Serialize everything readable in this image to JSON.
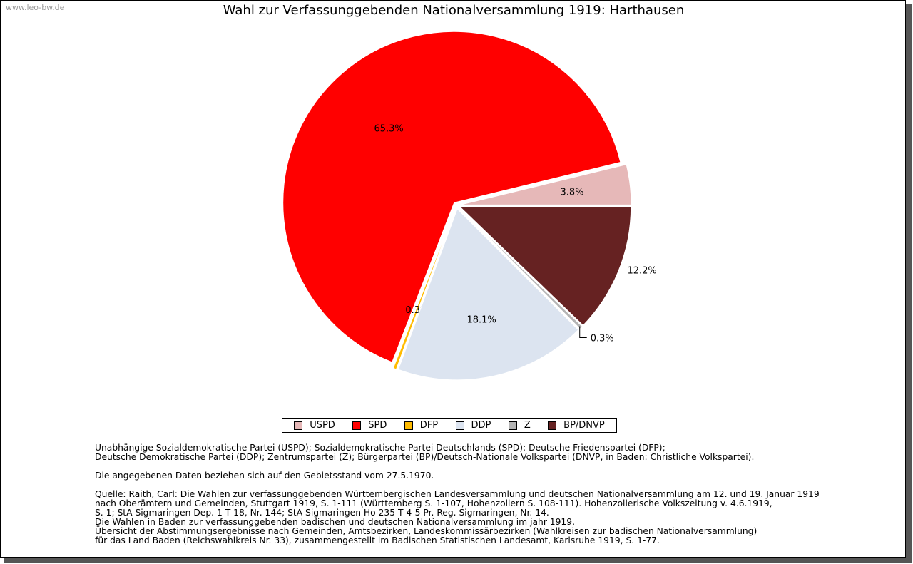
{
  "watermark": "www.leo-bw.de",
  "chart_data": {
    "type": "pie",
    "title": "Wahl zur Verfassunggebenden Nationalversammlung 1919: Harthausen",
    "slices": [
      {
        "name": "USPD",
        "value": 3.8,
        "label": "3.8%",
        "color": "#e6b8b8"
      },
      {
        "name": "SPD",
        "value": 65.3,
        "label": "65.3%",
        "color": "#ff0000"
      },
      {
        "name": "DFP",
        "value": 0.3,
        "label": "0.3%",
        "color": "#ffbb00"
      },
      {
        "name": "DDP",
        "value": 18.1,
        "label": "18.1%",
        "color": "#dce4f0"
      },
      {
        "name": "Z",
        "value": 0.3,
        "label": "0.3%",
        "color": "#b4b4b4"
      },
      {
        "name": "BP/DNVP",
        "value": 12.2,
        "label": "12.2%",
        "color": "#662222"
      }
    ],
    "legend_position": "bottom"
  },
  "footnotes": {
    "parties": [
      "Unabhängige Sozialdemokratische Partei (USPD); Sozialdemokratische Partei Deutschlands (SPD); Deutsche Friedenspartei (DFP);",
      "Deutsche Demokratische Partei (DDP); Zentrumspartei (Z); Bürgerpartei (BP)/Deutsch-Nationale Volkspartei (DNVP, in Baden: Christliche Volkspartei)."
    ],
    "territory": "Die angegebenen Daten beziehen sich auf den Gebietsstand vom 27.5.1970.",
    "source": [
      "Quelle: Raith, Carl: Die Wahlen zur verfassunggebenden Württembergischen Landesversammlung und deutschen Nationalversammlung am 12. und 19. Januar 1919",
      "nach Oberämtern und Gemeinden, Stuttgart 1919, S. 1-111 (Württemberg S. 1-107, Hohenzollern S. 108-111). Hohenzollerische Volkszeitung v. 4.6.1919,",
      "S. 1; StA Sigmaringen Dep. 1 T 18, Nr. 144; StA Sigmaringen Ho 235 T 4-5 Pr. Reg. Sigmaringen, Nr. 14.",
      "Die Wahlen in Baden zur verfassunggebenden badischen und deutschen Nationalversammlung im jahr 1919.",
      "Übersicht der Abstimmungsergebnisse nach Gemeinden, Amtsbezirken, Landeskommissärbezirken (Wahlkreisen zur badischen Nationalversammlung)",
      "für das Land Baden (Reichswahlkreis Nr. 33), zusammengestellt im Badischen Statistischen Landesamt, Karlsruhe 1919, S. 1-77."
    ]
  }
}
